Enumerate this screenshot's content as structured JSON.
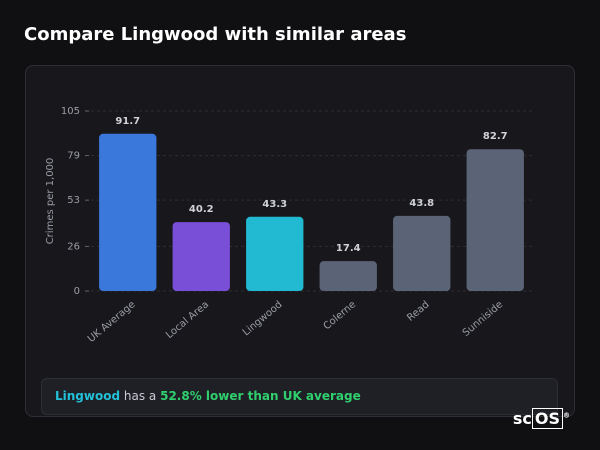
{
  "header": {
    "title": "Compare Lingwood with similar areas"
  },
  "chart_data": {
    "type": "bar",
    "y_label": "Crimes per 1,000",
    "categories": [
      "UK Average",
      "Local Area",
      "Lingwood",
      "Colerne",
      "Read",
      "Sunniside"
    ],
    "values": [
      91.7,
      40.2,
      43.3,
      17.4,
      43.8,
      82.7
    ],
    "colors": [
      "#3a78dc",
      "#7a4fd8",
      "#22b9d2",
      "#5a6476",
      "#5a6476",
      "#5a6476"
    ],
    "ylim": [
      0,
      105
    ],
    "yticks": [
      0,
      26,
      53,
      79,
      105
    ],
    "grid": true
  },
  "summary": {
    "area": "Lingwood",
    "connector": "has a",
    "highlight": "52.8% lower than UK average"
  },
  "logo": {
    "prefix": "sc",
    "boxed": "OS",
    "mark": "®"
  }
}
